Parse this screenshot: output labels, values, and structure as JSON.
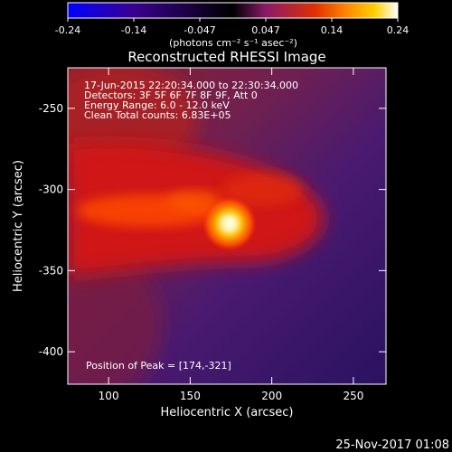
{
  "chart_data": {
    "type": "heatmap",
    "title": "Reconstructed RHESSI Image",
    "xlabel": "Heliocentric X (arcsec)",
    "ylabel": "Heliocentric Y (arcsec)",
    "xlim": [
      75,
      270
    ],
    "ylim": [
      -420,
      -225
    ],
    "x_ticks": [
      100,
      150,
      200,
      250
    ],
    "y_ticks": [
      -250,
      -300,
      -350,
      -400
    ],
    "colorbar": {
      "ticks": [
        "-0.24",
        "-0.14",
        "-0.047",
        "0.047",
        "0.14",
        "0.24"
      ],
      "range": [
        -0.24,
        0.24
      ],
      "unit": "(photons cm⁻² s⁻¹ asec⁻²)",
      "colors": [
        "#0000ff",
        "#3a0090",
        "#000000",
        "#8a1a6a",
        "#e03000",
        "#ff8c00",
        "#ffd000",
        "#ffffff"
      ]
    },
    "annotations": [
      "17-Jun-2015 22:20:34.000 to 22:30:34.000",
      "Detectors: 3F 5F 6F 7F 8F 9F, Att 0",
      "Energy Range: 6.0 - 12.0 keV",
      "Clean    Total counts: 6.83E+05"
    ],
    "peak_label": "Position of Peak = [174,-321]",
    "peak": [
      174,
      -321
    ],
    "timestamp": "25-Nov-2017 01:08"
  }
}
